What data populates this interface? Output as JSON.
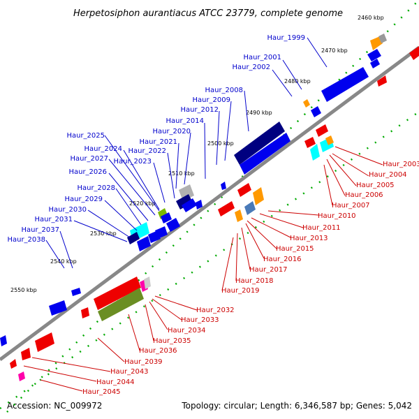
{
  "title": "Herpetosiphon aurantiacus ATCC 23779, complete genome",
  "accession": "Accession: NC_009972",
  "summary": "Topology: circular; Length: 6,346,587 bp; Genes: 5,042",
  "kbp_marks": [
    "2460 kbp",
    "2470 kbp",
    "2480 kbp",
    "2490 kbp",
    "2500 kbp",
    "2510 kbp",
    "2520 kbp",
    "2530 kbp",
    "2540 kbp",
    "2550 kbp"
  ],
  "top_labels": [
    "Haur_1999",
    "Haur_2001",
    "Haur_2002",
    "Haur_2008",
    "Haur_2009",
    "Haur_2012",
    "Haur_2014",
    "Haur_2020",
    "Haur_2021",
    "Haur_2022",
    "Haur_2023",
    "Haur_2024",
    "Haur_2025",
    "Haur_2027",
    "Haur_2026",
    "Haur_2028",
    "Haur_2029",
    "Haur_2030",
    "Haur_2031",
    "Haur_2037",
    "Haur_2038"
  ],
  "bottom_labels": [
    "Haur_2003",
    "Haur_2004",
    "Haur_2005",
    "Haur_2006",
    "Haur_2007",
    "Haur_2010",
    "Haur_2011",
    "Haur_2013",
    "Haur_2015",
    "Haur_2016",
    "Haur_2017",
    "Haur_2018",
    "Haur_2019",
    "Haur_2032",
    "Haur_2033",
    "Haur_2034",
    "Haur_2035",
    "Haur_2036",
    "Haur_2039",
    "Haur_2043",
    "Haur_2044",
    "Haur_2045"
  ],
  "colors": {
    "forward_strand": "#0000ee",
    "reverse_strand": "#ee0000",
    "backbone": "#888888",
    "dots": "#00aa00",
    "top_label": "#0000cc",
    "bottom_label": "#cc0000"
  }
}
